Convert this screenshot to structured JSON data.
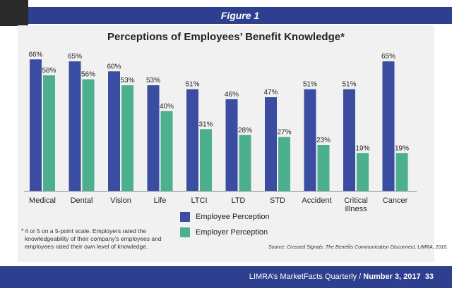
{
  "figure_label": "Figure 1",
  "chart_data": {
    "type": "bar",
    "title": "Perceptions of Employees’ Benefit Knowledge*",
    "categories": [
      "Medical",
      "Dental",
      "Vision",
      "Life",
      "LTCI",
      "LTD",
      "STD",
      "Accident",
      "Critical Illness",
      "Cancer"
    ],
    "series": [
      {
        "name": "Employee Perception",
        "color": "#3b4da0",
        "values": [
          66,
          65,
          60,
          53,
          51,
          46,
          47,
          51,
          51,
          65
        ]
      },
      {
        "name": "Employer Perception",
        "color": "#4cb08e",
        "values": [
          58,
          56,
          53,
          40,
          31,
          28,
          27,
          23,
          19,
          19
        ]
      }
    ],
    "value_labels": [
      [
        "66%",
        "65%",
        "60%",
        "53%",
        "51%",
        "46%",
        "47%",
        "51%",
        "51%",
        "65%"
      ],
      [
        "58%",
        "56%",
        "53%",
        "40%",
        "31%",
        "28%",
        "27%",
        "23%",
        "19%",
        "19%"
      ]
    ],
    "ylim": [
      0,
      70
    ],
    "xlabel": "",
    "ylabel": "",
    "grid": false,
    "legend_position": "bottom-center"
  },
  "footnote_marker": "*",
  "footnote": "4 or 5 on a 5-point scale. Employers rated the knowledgeability of their company’s employees and employees rated their own level of knowledge.",
  "source": "Source: Crossed Signals: The Benefits Communication Disconnect, LIMRA, 2016.",
  "footer": {
    "publication": "LIMRA’s MarketFacts Quarterly / ",
    "issue": "Number 3, 2017",
    "page": "33"
  }
}
